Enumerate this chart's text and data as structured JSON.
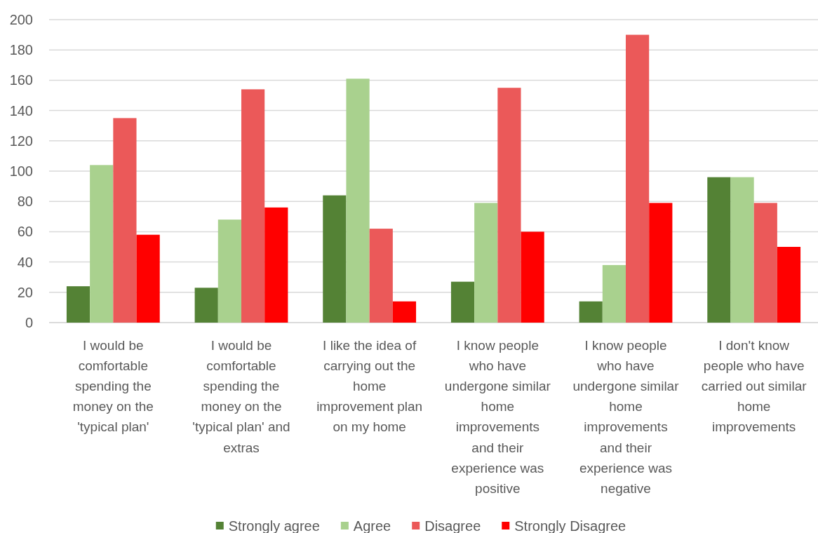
{
  "chart_data": {
    "type": "bar",
    "categories": [
      "I would be comfortable spending the money on the 'typical plan'",
      "I would be comfortable spending the money on the 'typical plan' and extras",
      "I like the idea of carrying out the home improvement plan on my home",
      "I know people who have undergone similar home improvements and their experience was positive",
      "I know people who have undergone similar home improvements and their experience was negative",
      "I don't know people who have carried out similar home improvements"
    ],
    "series": [
      {
        "name": "Strongly agree",
        "color": "#548235",
        "values": [
          24,
          23,
          84,
          27,
          14,
          96
        ]
      },
      {
        "name": "Agree",
        "color": "#a9d18e",
        "values": [
          104,
          68,
          161,
          79,
          38,
          96
        ]
      },
      {
        "name": "Disagree",
        "color": "#eb5959",
        "values": [
          135,
          154,
          62,
          155,
          190,
          79
        ]
      },
      {
        "name": "Strongly Disagree",
        "color": "#ff0000",
        "values": [
          58,
          76,
          14,
          60,
          79,
          50
        ]
      }
    ],
    "ylim": [
      0,
      200
    ],
    "yticks": [
      0,
      20,
      40,
      60,
      80,
      100,
      120,
      140,
      160,
      180,
      200
    ],
    "grid": "y",
    "legend": "bottom"
  }
}
